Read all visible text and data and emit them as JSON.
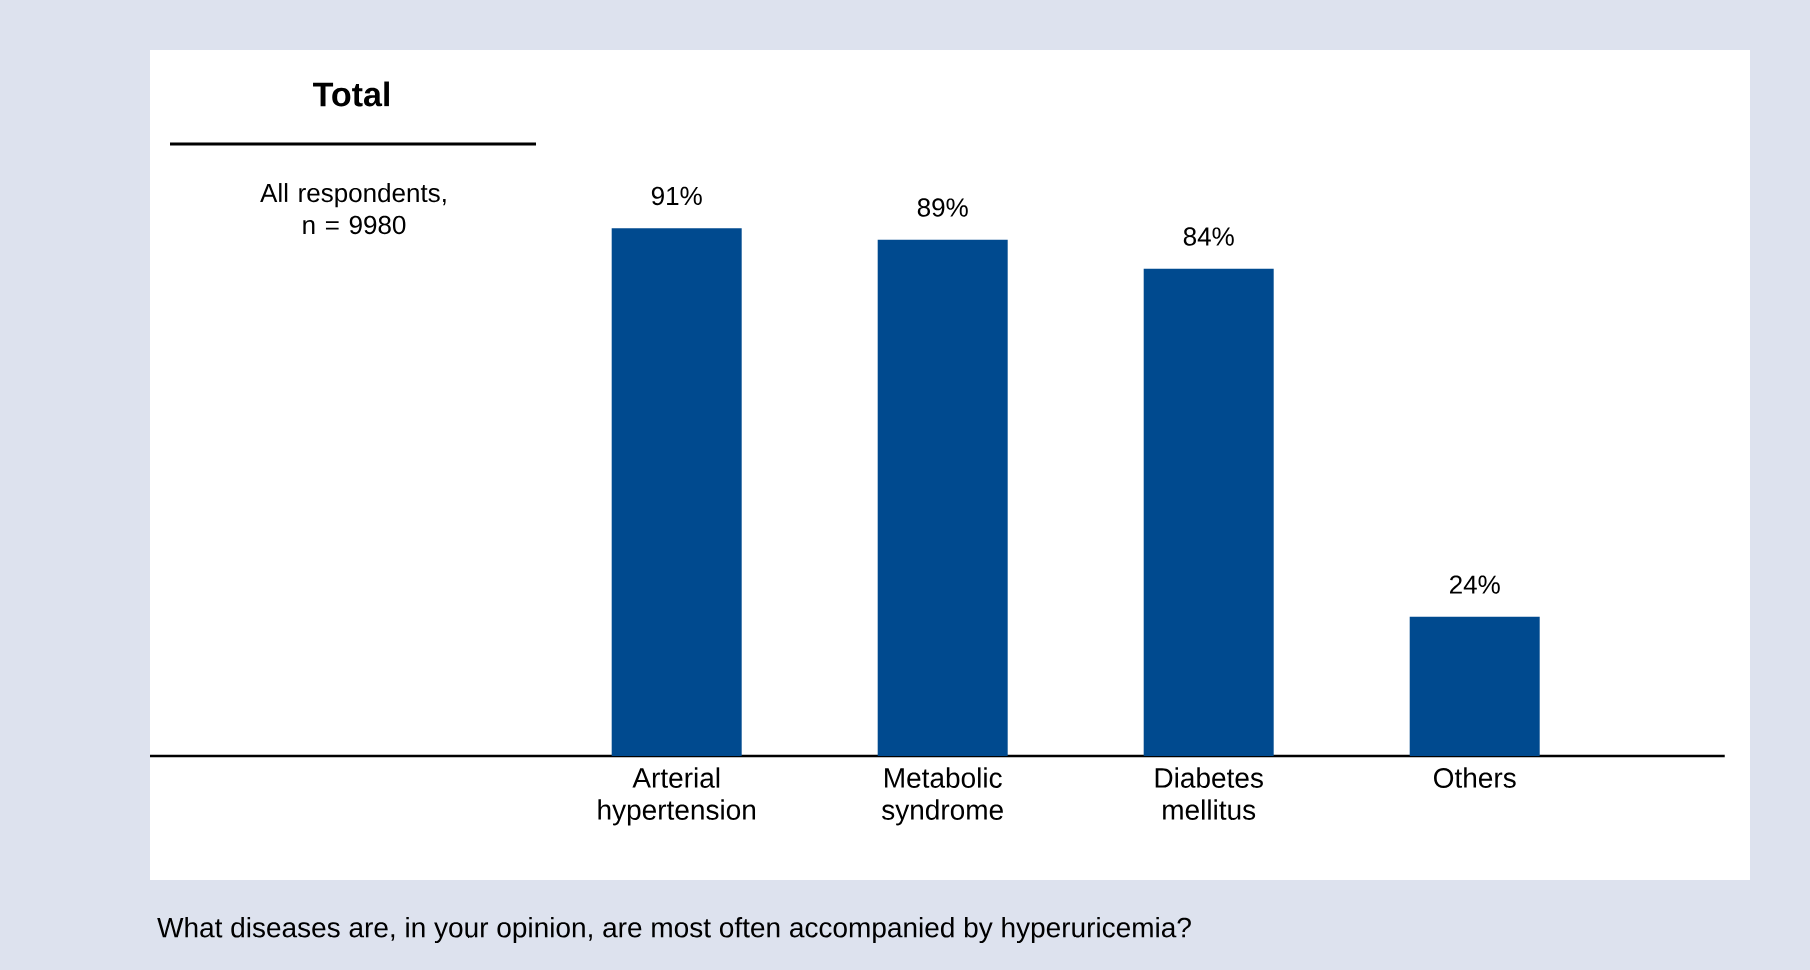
{
  "chart_data": {
    "type": "bar",
    "title": "Total",
    "subtitle": "All respondents, n = 9980",
    "categories": [
      "Arterial hypertension",
      "Metabolic syndrome",
      "Diabetes mellitus",
      "Others"
    ],
    "values": [
      91,
      89,
      84,
      24
    ],
    "color": "#004a8f",
    "value_labels": [
      "91%",
      "89%",
      "84%",
      "24%"
    ],
    "annotations": [
      "What diseases are, in your opinion, are most often accompanied by hyperuricemia?"
    ]
  }
}
